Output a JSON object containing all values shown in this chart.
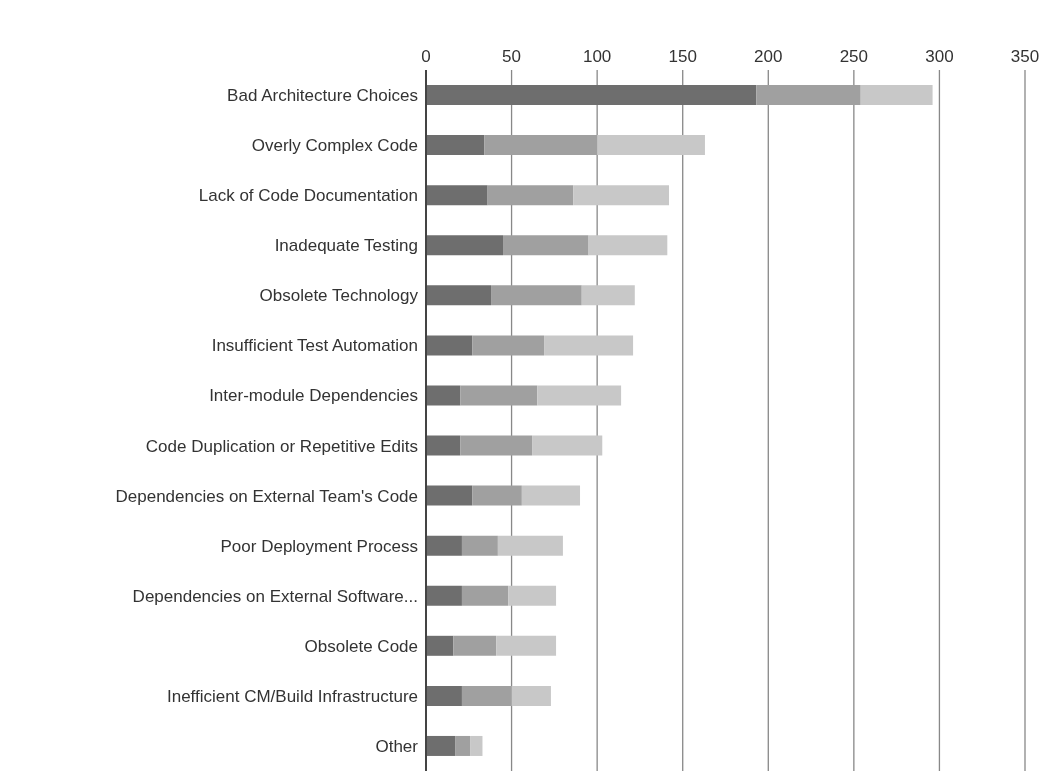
{
  "chart_data": {
    "type": "bar",
    "orientation": "horizontal",
    "stacked": true,
    "categories": [
      "Bad Architecture Choices",
      "Overly Complex Code",
      "Lack of Code Documentation",
      "Inadequate Testing",
      "Obsolete Technology",
      "Insufficient Test Automation",
      "Inter-module Dependencies",
      "Code Duplication or Repetitive Edits",
      "Dependencies on External Team's Code",
      "Poor Deployment Process",
      "Dependencies on External Software...",
      "Obsolete Code",
      "Inefficient CM/Build Infrastructure",
      "Other"
    ],
    "series": [
      {
        "color": "#6e6e6e",
        "values": [
          193,
          34,
          36,
          45,
          38,
          27,
          20,
          20,
          27,
          21,
          21,
          16,
          21,
          17
        ]
      },
      {
        "color": "#a0a0a0",
        "values": [
          61,
          66,
          50,
          50,
          53,
          42,
          45,
          42,
          29,
          21,
          27,
          25,
          29,
          9
        ]
      },
      {
        "color": "#c8c8c8",
        "values": [
          42,
          63,
          56,
          46,
          31,
          52,
          49,
          41,
          34,
          38,
          28,
          35,
          23,
          7
        ]
      }
    ],
    "xlim": [
      0,
      350
    ],
    "xticks": [
      0,
      50,
      100,
      150,
      200,
      250,
      300,
      350
    ],
    "grid": "x",
    "legend": false
  }
}
